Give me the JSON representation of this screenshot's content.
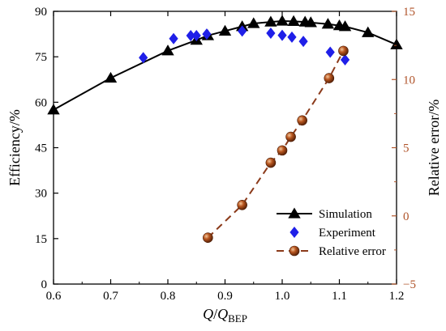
{
  "colors": {
    "simulation": "#000000",
    "experiment": "#1f1fe8",
    "relative_error_line": "#8b3a1a",
    "relative_error_marker": "#b5511e",
    "right_axis": "#b0542a"
  },
  "chart_data": {
    "type": "line",
    "x_axis": {
      "label_main": "Q",
      "label_sep": "/",
      "label_sub_base": "Q",
      "label_sub": "BEP",
      "range": [
        0.6,
        1.2
      ],
      "ticks": [
        0.6,
        0.7,
        0.8,
        0.9,
        1.0,
        1.1,
        1.2
      ],
      "tick_labels": [
        "0.6",
        "0.7",
        "0.8",
        "0.9",
        "1.0",
        "1.1",
        "1.2"
      ]
    },
    "y_axis_left": {
      "label": "Efficiency/%",
      "range": [
        0,
        90
      ],
      "ticks": [
        0,
        15,
        30,
        45,
        60,
        75,
        90
      ],
      "tick_labels": [
        "0",
        "15",
        "30",
        "45",
        "60",
        "75",
        "90"
      ]
    },
    "y_axis_right": {
      "label": "Relative error/%",
      "range": [
        -5,
        15
      ],
      "ticks": [
        -5,
        0,
        5,
        10,
        15
      ],
      "tick_labels": [
        "−5",
        "0",
        "5",
        "10",
        "15"
      ]
    },
    "legend_position": "bottom-right",
    "series": [
      {
        "name": "Simulation",
        "axis": "left",
        "style": "line-triangle",
        "x": [
          0.6,
          0.7,
          0.8,
          0.85,
          0.87,
          0.9,
          0.93,
          0.95,
          0.98,
          1.0,
          1.02,
          1.04,
          1.05,
          1.08,
          1.1,
          1.11,
          1.15,
          1.2
        ],
        "y": [
          57.5,
          68,
          77,
          80.5,
          82,
          83.5,
          85,
          86,
          86.5,
          86.8,
          86.7,
          86.5,
          86.3,
          85.8,
          85.3,
          85,
          83,
          79
        ]
      },
      {
        "name": "Experiment",
        "axis": "left",
        "style": "diamond",
        "x": [
          0.757,
          0.81,
          0.84,
          0.85,
          0.868,
          0.93,
          0.98,
          1.0,
          1.017,
          1.037,
          1.084,
          1.11
        ],
        "y": [
          74.7,
          81,
          82,
          82,
          82.5,
          83.5,
          82.8,
          82.1,
          81.5,
          80.1,
          76.5,
          74
        ]
      },
      {
        "name": "Relative error",
        "axis": "right",
        "style": "dashed-sphere",
        "x": [
          0.87,
          0.93,
          0.98,
          1.0,
          1.015,
          1.035,
          1.082,
          1.107
        ],
        "y": [
          -1.6,
          0.8,
          3.9,
          4.8,
          5.8,
          7.0,
          10.1,
          12.1
        ]
      }
    ]
  }
}
